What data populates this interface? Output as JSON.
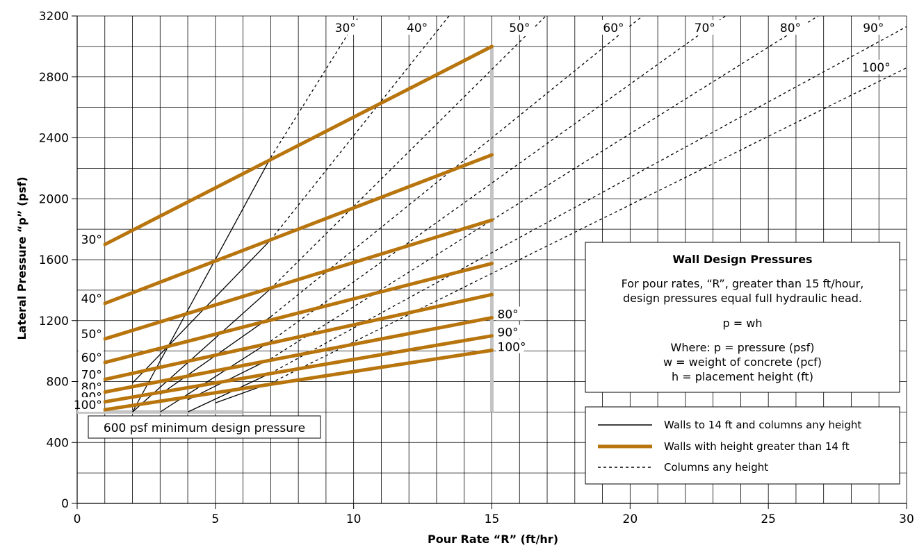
{
  "chart_data": {
    "type": "line",
    "xlabel": "Pour Rate “R” (ft/hr)",
    "ylabel": "Lateral Pressure “p” (psf)",
    "xlim": [
      0,
      30
    ],
    "ylim": [
      0,
      3200
    ],
    "x_ticks": [
      "0",
      "5",
      "10",
      "15",
      "20",
      "25",
      "30"
    ],
    "y_ticks": [
      "0",
      "400",
      "800",
      "1200",
      "1600",
      "2000",
      "2400",
      "2800",
      "3200"
    ],
    "grid": true,
    "minimum_pressure": {
      "value": 600,
      "x_range": [
        0,
        6
      ],
      "label": "600 psf minimum design pressure"
    },
    "max_rate_line": {
      "x": 15,
      "y_range": [
        600,
        3000
      ]
    },
    "series": [
      {
        "name": "Walls with height greater than 14 ft",
        "style": "thick",
        "color": "#b8750e",
        "lines": [
          {
            "temp_label": "30°",
            "points": [
              [
                1,
                1700
              ],
              [
                15,
                3000
              ]
            ]
          },
          {
            "temp_label": "40°",
            "points": [
              [
                1,
                1313
              ],
              [
                15,
                2288
              ]
            ]
          },
          {
            "temp_label": "50°",
            "points": [
              [
                1,
                1080
              ],
              [
                15,
                1860
              ]
            ]
          },
          {
            "temp_label": "60°",
            "points": [
              [
                1,
                925
              ],
              [
                15,
                1575
              ]
            ]
          },
          {
            "temp_label": "70°",
            "points": [
              [
                1,
                814
              ],
              [
                15,
                1371
              ]
            ]
          },
          {
            "temp_label": "80°",
            "points": [
              [
                1,
                731
              ],
              [
                15,
                1219
              ]
            ]
          },
          {
            "temp_label": "90°",
            "points": [
              [
                1,
                667
              ],
              [
                15,
                1100
              ]
            ]
          },
          {
            "temp_label": "100°",
            "points": [
              [
                1,
                615
              ],
              [
                15,
                1005
              ]
            ]
          }
        ]
      },
      {
        "name": "Walls to 14 ft and columns any height",
        "style": "solid",
        "color": "#000000",
        "lines": [
          {
            "temp": "30°",
            "points": [
              [
                2,
                600
              ],
              [
                7,
                2270
              ]
            ]
          },
          {
            "temp": "40°",
            "points": [
              [
                2,
                790
              ],
              [
                7,
                1730
              ]
            ]
          },
          {
            "temp": "50°",
            "points": [
              [
                2,
                600
              ],
              [
                7,
                1410
              ]
            ]
          },
          {
            "temp": "60°",
            "points": [
              [
                3,
                715
              ],
              [
                7,
                1225
              ]
            ]
          },
          {
            "temp": "70°",
            "points": [
              [
                3,
                600
              ],
              [
                7,
                1065
              ]
            ]
          },
          {
            "temp": "80°",
            "points": [
              [
                4,
                680
              ],
              [
                7,
                950
              ]
            ]
          },
          {
            "temp": "90°",
            "points": [
              [
                4,
                600
              ],
              [
                7,
                855
              ]
            ]
          },
          {
            "temp": "100°",
            "points": [
              [
                5,
                660
              ],
              [
                7,
                790
              ]
            ]
          }
        ]
      },
      {
        "name": "Columns any height",
        "style": "dashed",
        "color": "#000000",
        "lines": [
          {
            "temp_label": "30°",
            "points": [
              [
                7,
                2270
              ],
              [
                10.2,
                3200
              ]
            ]
          },
          {
            "temp_label": "40°",
            "points": [
              [
                7,
                1730
              ],
              [
                13.45,
                3200
              ]
            ]
          },
          {
            "temp_label": "50°",
            "points": [
              [
                7,
                1410
              ],
              [
                16.95,
                3200
              ]
            ]
          },
          {
            "temp_label": "60°",
            "points": [
              [
                7,
                1225
              ],
              [
                20.45,
                3200
              ]
            ]
          },
          {
            "temp_label": "70°",
            "points": [
              [
                7,
                1065
              ],
              [
                23.45,
                3200
              ]
            ]
          },
          {
            "temp_label": "80°",
            "points": [
              [
                7,
                950
              ],
              [
                26.8,
                3200
              ]
            ]
          },
          {
            "temp_label": "90°",
            "points": [
              [
                7,
                855
              ],
              [
                30,
                3130
              ]
            ]
          },
          {
            "temp_label": "100°",
            "points": [
              [
                7,
                790
              ],
              [
                30,
                2860
              ]
            ]
          }
        ]
      }
    ],
    "info_box": {
      "title": "Wall Design Pressures",
      "line1": "For pour rates, “R”, greater than 15 ft/hour,",
      "line2": "design pressures equal full hydraulic head.",
      "formula": "p = wh",
      "where1": "Where: p = pressure (psf)",
      "where2": "w = weight of concrete (pcf)",
      "where3": "h = placement height (ft)"
    },
    "legend": [
      {
        "label": "Walls to 14 ft and columns any height",
        "style": "solid"
      },
      {
        "label": "Walls with height greater than 14 ft",
        "style": "thick"
      },
      {
        "label": "Columns any height",
        "style": "dashed"
      }
    ]
  }
}
